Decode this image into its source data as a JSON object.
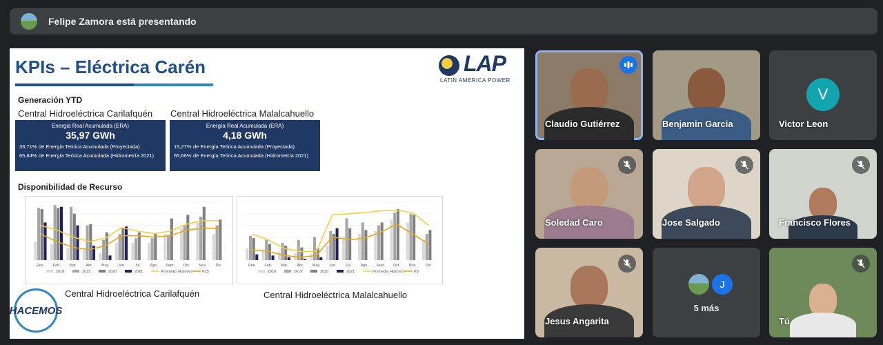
{
  "topbar": {
    "text": "Felipe Zamora está presentando"
  },
  "slide": {
    "title": "KPIs – Eléctrica Carén",
    "logo": {
      "name": "LAP",
      "sub": "LATIN AMERICA POWER"
    },
    "generation_label": "Generación YTD",
    "plants": [
      {
        "name": "Central Hidroeléctrica Carilafquén",
        "era_label": "Energia Real Acumulada (ERA)",
        "era_value": "35,97 GWh",
        "row1_pct": "33,71%",
        "row1_text": "de Energia Teórica Acumulada (Proyectada)",
        "row2_pct": "65,84%",
        "row2_text": "de Energía Teórica Acumulada (Hidrometría 2021)"
      },
      {
        "name": "Central Hidroeléctrica Malalcahuello",
        "era_label": "Energía Real Acumulada (ERA)",
        "era_value": "4,18 GWh",
        "row1_pct": "15,27%",
        "row1_text": "de Energía Teórica Acumulada (Proyectada)",
        "row2_pct": "65,66%",
        "row2_text": "de Energía Teórica Acumulada (Hidrometría 2021)"
      }
    ],
    "availability_label": "Disponibilidad de Recurso",
    "badge_text": "HACEMOS"
  },
  "chart_data": [
    {
      "type": "bar",
      "title": "",
      "caption": "Central Hidroeléctrica Carilafquén",
      "categories": [
        "Ene.",
        "Feb.",
        "Mar.",
        "Abr.",
        "May.",
        "Jun.",
        "Jul.",
        "Ago.",
        "Sept.",
        "Oct.",
        "Nov.",
        "Dic."
      ],
      "ylim": [
        0,
        100
      ],
      "series": [
        {
          "name": "2018",
          "kind": "bar",
          "color": "#d9d9d9",
          "values": [
            32,
            28,
            20,
            18,
            12,
            30,
            30,
            30,
            45,
            55,
            65,
            45
          ]
        },
        {
          "name": "2019",
          "kind": "bar",
          "color": "#a6a6a6",
          "values": [
            90,
            95,
            92,
            60,
            35,
            45,
            38,
            38,
            42,
            60,
            75,
            60
          ]
        },
        {
          "name": "2020",
          "kind": "bar",
          "color": "#7f7f7f",
          "values": [
            88,
            90,
            80,
            62,
            48,
            55,
            48,
            45,
            72,
            78,
            92,
            70
          ]
        },
        {
          "name": "2021",
          "kind": "bar",
          "color": "#1f1f6b",
          "values": [
            65,
            92,
            60,
            25,
            8,
            58,
            0,
            0,
            0,
            0,
            0,
            0
          ]
        },
        {
          "name": "Promedio Histórico",
          "kind": "line",
          "color": "#f4d03f",
          "values": [
            60,
            52,
            40,
            32,
            38,
            56,
            50,
            46,
            50,
            62,
            68,
            68
          ]
        },
        {
          "name": "P25",
          "kind": "line",
          "color": "#e6a817",
          "values": [
            45,
            32,
            22,
            18,
            25,
            42,
            42,
            40,
            42,
            52,
            55,
            55
          ]
        }
      ]
    },
    {
      "type": "bar",
      "title": "",
      "caption": "Central Hidroeléctrica Malalcahuello",
      "categories": [
        "Ene.",
        "Feb.",
        "Mar.",
        "Abr.",
        "May.",
        "Jun.",
        "Jul.",
        "Ago.",
        "Sept.",
        "Oct.",
        "Nov.",
        "Dic."
      ],
      "ylim": [
        0,
        100
      ],
      "series": [
        {
          "name": "2018",
          "kind": "bar",
          "color": "#d9d9d9",
          "values": [
            20,
            18,
            15,
            12,
            10,
            25,
            40,
            45,
            50,
            70,
            65,
            35
          ]
        },
        {
          "name": "2019",
          "kind": "bar",
          "color": "#a6a6a6",
          "values": [
            42,
            35,
            30,
            35,
            40,
            50,
            72,
            65,
            60,
            82,
            80,
            45
          ]
        },
        {
          "name": "2020",
          "kind": "bar",
          "color": "#7f7f7f",
          "values": [
            38,
            28,
            25,
            22,
            20,
            45,
            55,
            52,
            65,
            88,
            78,
            52
          ]
        },
        {
          "name": "2021",
          "kind": "bar",
          "color": "#1f1f6b",
          "values": [
            10,
            8,
            5,
            2,
            5,
            55,
            0,
            0,
            0,
            0,
            0,
            0
          ]
        },
        {
          "name": "Promedio Histórico",
          "kind": "line",
          "color": "#f4d03f",
          "values": [
            45,
            35,
            20,
            15,
            15,
            78,
            80,
            82,
            85,
            86,
            82,
            60
          ]
        },
        {
          "name": "P0",
          "kind": "line",
          "color": "#e6a817",
          "values": [
            18,
            15,
            8,
            5,
            8,
            40,
            35,
            38,
            48,
            62,
            45,
            28
          ]
        }
      ]
    }
  ],
  "participants": [
    {
      "name": "Claudio Gutiérrez",
      "state": "speaking"
    },
    {
      "name": "Benjamin Garcia",
      "state": "unmuted"
    },
    {
      "name": "Victor Leon",
      "state": "avatar",
      "initial": "V"
    },
    {
      "name": "Soledad Caro",
      "state": "muted"
    },
    {
      "name": "Jose Salgado",
      "state": "muted"
    },
    {
      "name": "Francisco Flores",
      "state": "muted"
    },
    {
      "name": "Jesus Angarita",
      "state": "muted"
    },
    {
      "name": "5 más",
      "state": "more",
      "initial": "J"
    },
    {
      "name": "Tú",
      "state": "muted"
    }
  ],
  "colors": {
    "meet_bg": "#202124",
    "tile_bg": "#3c4043",
    "slide_navy": "#1f3864",
    "accent_blue": "#8ab4f8"
  }
}
